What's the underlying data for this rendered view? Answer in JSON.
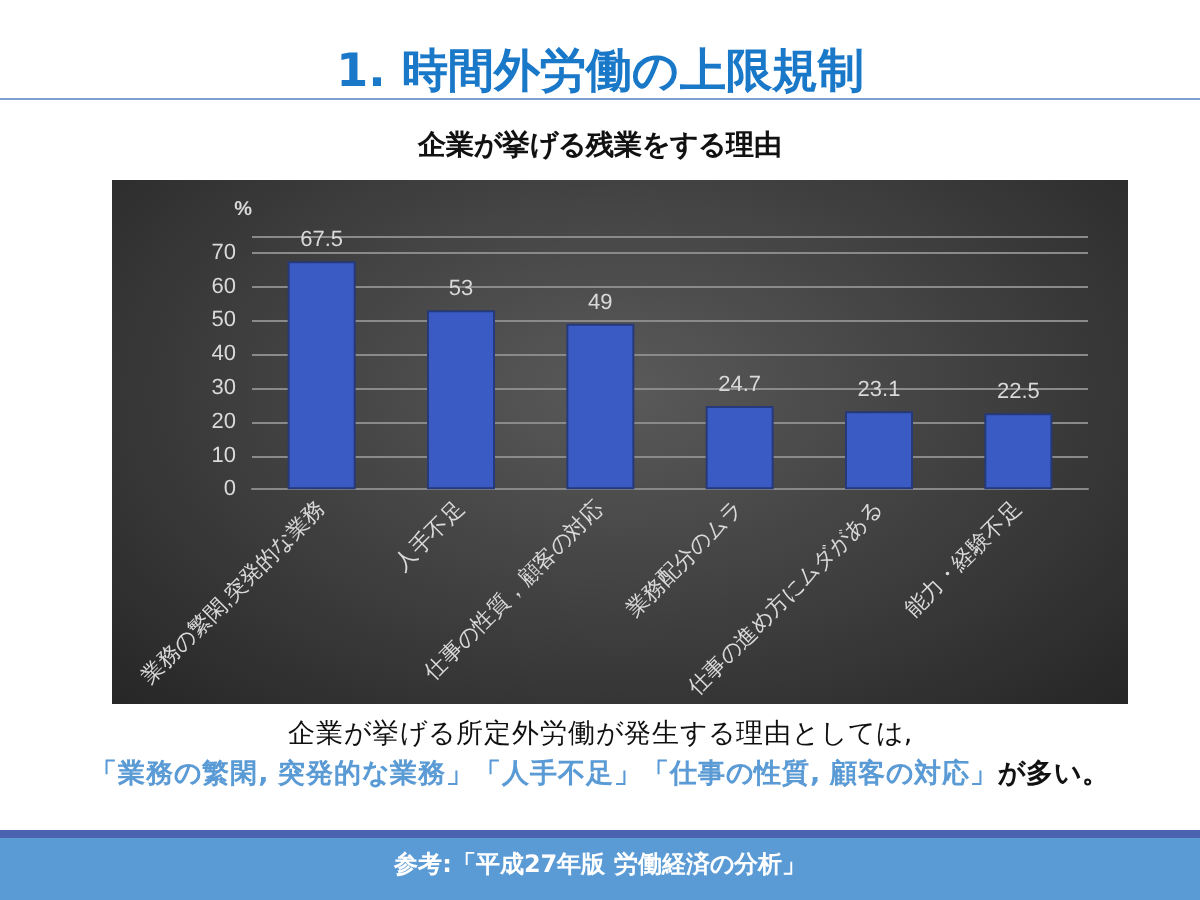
{
  "chart_data": {
    "type": "bar",
    "title": "1. 時間外労働の上限規制",
    "subtitle": "企業が挙げる残業をする理由",
    "ylabel": "%",
    "categories": [
      "業務の繁閑,突発的な業務",
      "人手不足",
      "仕事の性質，顧客の対応",
      "業務配分のムラ",
      "仕事の進め方にムダがある",
      "能力・経験不足"
    ],
    "values": [
      67.5,
      53,
      49,
      24.7,
      23.1,
      22.5
    ],
    "color": "#3a5bc4",
    "ylim": [
      0,
      75
    ],
    "yticks": [
      0,
      10,
      20,
      30,
      40,
      50,
      60,
      70,
      {
        "value": 75,
        "label": null
      }
    ],
    "grid": "y",
    "data_labels": true,
    "annotations": [
      "企業が挙げる所定外労働が発生する理由としては,",
      "「業務の繁閑, 突発的な業務」「人手不足」「仕事の性質, 顧客の対応」",
      "が多い。",
      "参考:「平成27年版  労働経済の分析」"
    ]
  }
}
